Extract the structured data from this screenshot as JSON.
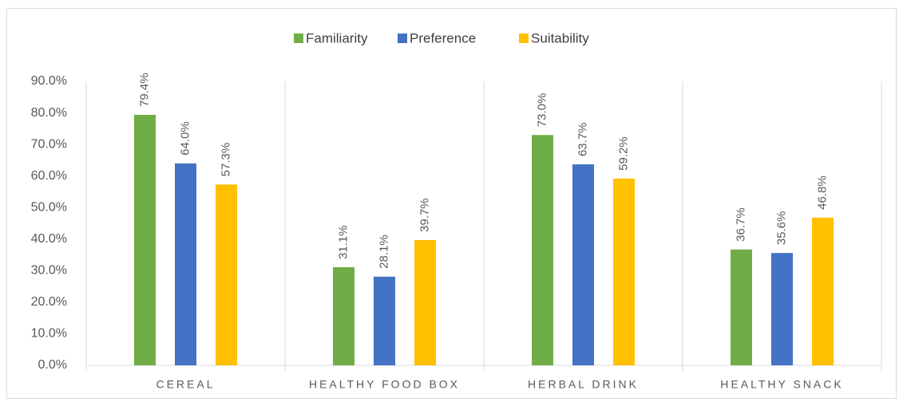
{
  "chart_data": {
    "type": "bar",
    "categories": [
      "CEREAL",
      "HEALTHY FOOD BOX",
      "HERBAL DRINK",
      "HEALTHY SNACK"
    ],
    "series": [
      {
        "name": "Familiarity",
        "color": "#70ad47",
        "values": [
          79.4,
          31.1,
          73.0,
          36.7
        ],
        "value_labels": [
          "79.4%",
          "31.1%",
          "73.0%",
          "36.7%"
        ]
      },
      {
        "name": "Preference",
        "color": "#4472c4",
        "values": [
          64.0,
          28.1,
          63.7,
          35.6
        ],
        "value_labels": [
          "64.0%",
          "28.1%",
          "63.7%",
          "35.6%"
        ]
      },
      {
        "name": "Suitability",
        "color": "#ffc000",
        "values": [
          57.3,
          39.7,
          59.2,
          46.8
        ],
        "value_labels": [
          "57.3%",
          "39.7%",
          "59.2%",
          "46.8%"
        ]
      }
    ],
    "ylim": [
      0,
      90
    ],
    "yticks": [
      {
        "value": 0,
        "label": "0.0%"
      },
      {
        "value": 10,
        "label": "10.0%"
      },
      {
        "value": 20,
        "label": "20.0%"
      },
      {
        "value": 30,
        "label": "30.0%"
      },
      {
        "value": 40,
        "label": "40.0%"
      },
      {
        "value": 50,
        "label": "50.0%"
      },
      {
        "value": 60,
        "label": "60.0%"
      },
      {
        "value": 70,
        "label": "70.0%"
      },
      {
        "value": 80,
        "label": "80.0%"
      },
      {
        "value": 90,
        "label": "90.0%"
      }
    ],
    "legend": "top",
    "grid": false
  }
}
